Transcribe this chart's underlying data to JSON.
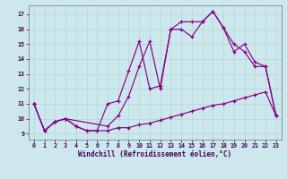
{
  "xlabel": "Windchill (Refroidissement éolien,°C)",
  "background_color": "#cce8ec",
  "grid_color": "#aacccc",
  "line_color": "#880088",
  "xlim": [
    -0.5,
    23.5
  ],
  "ylim": [
    8.6,
    17.6
  ],
  "yticks": [
    9,
    10,
    11,
    12,
    13,
    14,
    15,
    16,
    17
  ],
  "xticks": [
    0,
    1,
    2,
    3,
    4,
    5,
    6,
    7,
    8,
    9,
    10,
    11,
    12,
    13,
    14,
    15,
    16,
    17,
    18,
    19,
    20,
    21,
    22,
    23
  ],
  "line1_x": [
    0,
    1,
    2,
    3,
    4,
    5,
    6,
    7,
    8,
    9,
    10,
    11,
    12,
    13,
    14,
    15,
    16,
    17,
    18,
    19,
    20,
    21,
    22,
    23
  ],
  "line1_y": [
    11.0,
    9.2,
    9.8,
    10.0,
    9.5,
    9.2,
    9.2,
    9.2,
    9.4,
    9.4,
    9.6,
    9.7,
    9.9,
    10.1,
    10.3,
    10.5,
    10.7,
    10.9,
    11.0,
    11.2,
    11.4,
    11.6,
    11.8,
    10.2
  ],
  "line2_x": [
    0,
    1,
    2,
    3,
    4,
    5,
    6,
    7,
    8,
    9,
    10,
    11,
    12,
    13,
    14,
    15,
    16,
    17,
    18,
    19,
    20,
    21,
    22,
    23
  ],
  "line2_y": [
    11.0,
    9.2,
    9.8,
    10.0,
    9.5,
    9.2,
    9.2,
    11.0,
    11.2,
    13.2,
    15.2,
    12.0,
    12.2,
    16.0,
    16.5,
    16.5,
    16.5,
    17.2,
    16.1,
    15.0,
    14.5,
    13.5,
    13.5,
    10.2
  ],
  "line3_x": [
    0,
    1,
    2,
    3,
    7,
    8,
    9,
    10,
    11,
    12,
    13,
    14,
    15,
    16,
    17,
    18,
    19,
    20,
    21,
    22,
    23
  ],
  "line3_y": [
    11.0,
    9.2,
    9.8,
    10.0,
    9.5,
    10.2,
    11.5,
    13.5,
    15.2,
    12.0,
    16.0,
    16.0,
    15.5,
    16.5,
    17.2,
    16.1,
    14.5,
    15.0,
    13.8,
    13.5,
    10.2
  ]
}
